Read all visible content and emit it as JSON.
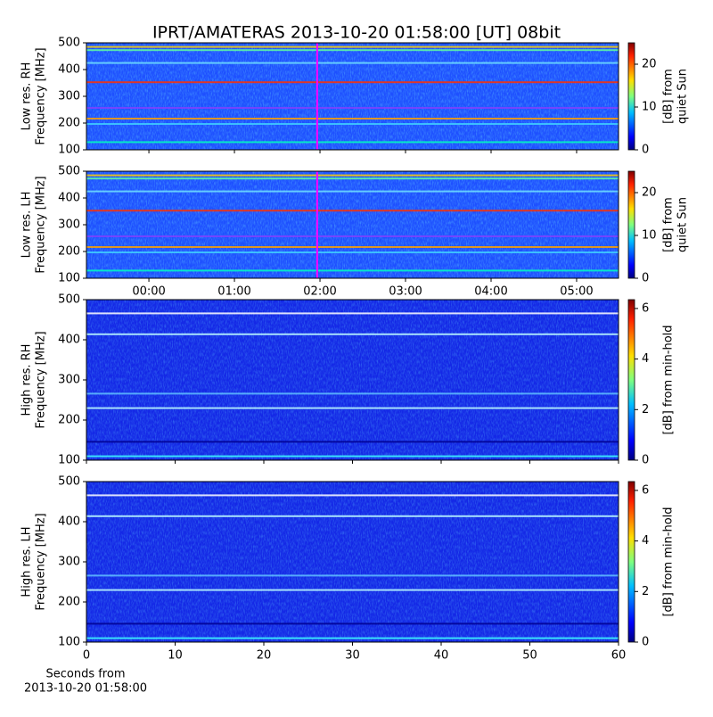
{
  "title": "IPRT/AMATERAS 2013-10-20 01:58:00 [UT]   08bit",
  "chart_data": [
    {
      "type": "heatmap",
      "ylabel": [
        "Low res. RH",
        "Frequency [MHz]"
      ],
      "xlim": [
        -0.73,
        5.49
      ],
      "xticks": [
        0,
        1,
        2,
        3,
        4,
        5
      ],
      "ylim": [
        100,
        500
      ],
      "yticks": [
        100,
        200,
        300,
        400,
        500
      ],
      "marker_x": 1.967,
      "marker_color": "#ff00ff",
      "colorbar": {
        "label": [
          "[dB] from",
          "quiet Sun"
        ],
        "lim": [
          0,
          25
        ],
        "ticks": [
          0,
          10,
          20
        ],
        "colormap": "jet"
      }
    },
    {
      "type": "heatmap",
      "ylabel": [
        "Low res. LH",
        "Frequency [MHz]"
      ],
      "xlim": [
        -0.73,
        5.49
      ],
      "xticks": [
        {
          "value": 0,
          "label": "00:00"
        },
        {
          "value": 1,
          "label": "01:00"
        },
        {
          "value": 2,
          "label": "02:00"
        },
        {
          "value": 3,
          "label": "03:00"
        },
        {
          "value": 4,
          "label": "04:00"
        },
        {
          "value": 5,
          "label": "05:00"
        }
      ],
      "ylim": [
        100,
        500
      ],
      "yticks": [
        100,
        200,
        300,
        400,
        500
      ],
      "marker_x": 1.967,
      "marker_color": "#ff00ff",
      "colorbar": {
        "label": [
          "[dB] from",
          "quiet Sun"
        ],
        "lim": [
          0,
          25
        ],
        "ticks": [
          0,
          10,
          20
        ],
        "colormap": "jet"
      }
    },
    {
      "type": "heatmap",
      "ylabel": [
        "High res. RH",
        "Frequency [MHz]"
      ],
      "xlim": [
        0,
        60
      ],
      "xticks": [
        0,
        10,
        20,
        30,
        40,
        50,
        60
      ],
      "ylim": [
        100,
        500
      ],
      "yticks": [
        100,
        200,
        300,
        400,
        500
      ],
      "colorbar": {
        "label": [
          "[dB] from min-hold"
        ],
        "lim": [
          0,
          6.35
        ],
        "ticks": [
          0,
          2,
          4,
          6
        ],
        "colormap": "jet"
      }
    },
    {
      "type": "heatmap",
      "ylabel": [
        "High res. LH",
        "Frequency [MHz]"
      ],
      "xlabel": [
        "Seconds from",
        "2013-10-20 01:58:00"
      ],
      "xlim": [
        0,
        60
      ],
      "xticks": [
        0,
        10,
        20,
        30,
        40,
        50,
        60
      ],
      "show_xtick_labels": true,
      "ylim": [
        100,
        500
      ],
      "yticks": [
        100,
        200,
        300,
        400,
        500
      ],
      "colorbar": {
        "label": [
          "[dB] from min-hold"
        ],
        "lim": [
          0,
          6.35
        ],
        "ticks": [
          0,
          2,
          4,
          6
        ],
        "colormap": "jet"
      }
    }
  ]
}
